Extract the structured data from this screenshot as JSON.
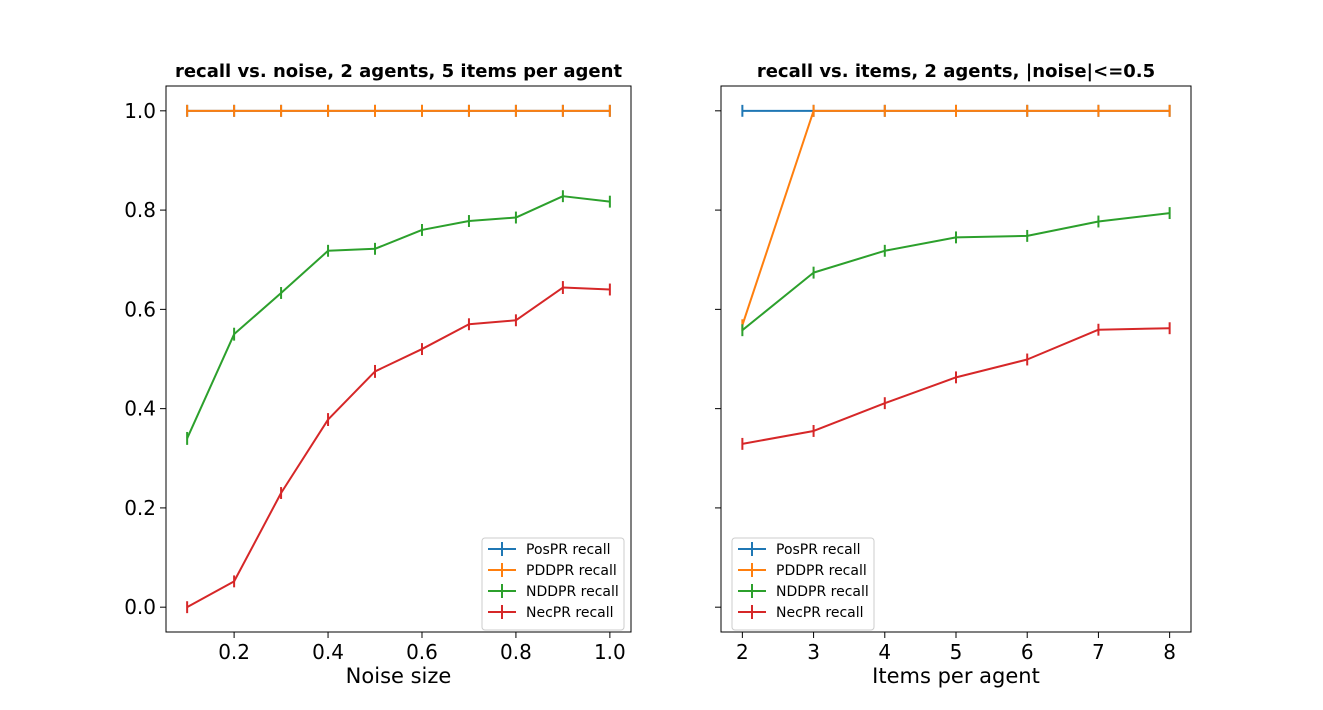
{
  "chart_data": [
    {
      "type": "line",
      "title": "recall vs. noise, 2 agents, 5 items per agent",
      "xlabel": "Noise size",
      "ylabel": "",
      "xlim": [
        0.055,
        1.045
      ],
      "ylim": [
        -0.05,
        1.05
      ],
      "xticks": [
        0.2,
        0.4,
        0.6,
        0.8,
        1.0
      ],
      "xtick_labels": [
        "0.2",
        "0.4",
        "0.6",
        "0.8",
        "1.0"
      ],
      "yticks": [
        0.0,
        0.2,
        0.4,
        0.6,
        0.8,
        1.0
      ],
      "ytick_labels": [
        "0.0",
        "0.2",
        "0.4",
        "0.6",
        "0.8",
        "1.0"
      ],
      "grid": false,
      "legend": "lower-right",
      "x": [
        0.1,
        0.2,
        0.3,
        0.4,
        0.5,
        0.6,
        0.7,
        0.8,
        0.9,
        1.0
      ],
      "series": [
        {
          "name": "PosPR recall",
          "color": "#1f77b4",
          "values": [
            1.0,
            1.0,
            1.0,
            1.0,
            1.0,
            1.0,
            1.0,
            1.0,
            1.0,
            1.0
          ],
          "err": [
            0,
            0,
            0,
            0,
            0,
            0,
            0,
            0,
            0,
            0
          ]
        },
        {
          "name": "PDDPR recall",
          "color": "#ff7f0e",
          "values": [
            1.0,
            1.0,
            1.0,
            1.0,
            1.0,
            1.0,
            1.0,
            1.0,
            1.0,
            1.0
          ],
          "err": [
            0,
            0,
            0,
            0,
            0,
            0,
            0,
            0,
            0,
            0
          ]
        },
        {
          "name": "NDDPR recall",
          "color": "#2ca02c",
          "values": [
            0.34,
            0.55,
            0.633,
            0.718,
            0.722,
            0.76,
            0.778,
            0.785,
            0.828,
            0.817
          ],
          "err": [
            0.013,
            0.013,
            0.012,
            0.01,
            0.01,
            0.01,
            0.01,
            0.01,
            0.01,
            0.01
          ]
        },
        {
          "name": "NecPR recall",
          "color": "#d62728",
          "values": [
            0.0,
            0.052,
            0.23,
            0.378,
            0.475,
            0.52,
            0.57,
            0.578,
            0.644,
            0.64
          ],
          "err": [
            0.003,
            0.006,
            0.012,
            0.013,
            0.013,
            0.012,
            0.012,
            0.012,
            0.013,
            0.012
          ]
        }
      ]
    },
    {
      "type": "line",
      "title": "recall vs. items, 2 agents, |noise|<=0.5",
      "xlabel": "Items per agent",
      "ylabel": "",
      "xlim": [
        1.7,
        8.3
      ],
      "ylim": [
        -0.05,
        1.05
      ],
      "xticks": [
        2,
        3,
        4,
        5,
        6,
        7,
        8
      ],
      "xtick_labels": [
        "2",
        "3",
        "4",
        "5",
        "6",
        "7",
        "8"
      ],
      "yticks": [
        0.0,
        0.2,
        0.4,
        0.6,
        0.8,
        1.0
      ],
      "ytick_labels": [],
      "grid": false,
      "legend": "lower-left",
      "x": [
        2,
        3,
        4,
        5,
        6,
        7,
        8
      ],
      "series": [
        {
          "name": "PosPR recall",
          "color": "#1f77b4",
          "values": [
            1.0,
            1.0,
            1.0,
            1.0,
            1.0,
            1.0,
            1.0
          ],
          "err": [
            0,
            0,
            0,
            0,
            0,
            0,
            0
          ]
        },
        {
          "name": "PDDPR recall",
          "color": "#ff7f0e",
          "values": [
            0.568,
            1.0,
            1.0,
            1.0,
            1.0,
            1.0,
            1.0
          ],
          "err": [
            0.01,
            0,
            0,
            0,
            0,
            0,
            0
          ]
        },
        {
          "name": "NDDPR recall",
          "color": "#2ca02c",
          "values": [
            0.558,
            0.674,
            0.718,
            0.745,
            0.748,
            0.777,
            0.794
          ],
          "err": [
            0.012,
            0.011,
            0.01,
            0.01,
            0.009,
            0.01,
            0.01
          ]
        },
        {
          "name": "NecPR recall",
          "color": "#d62728",
          "values": [
            0.329,
            0.355,
            0.411,
            0.463,
            0.499,
            0.559,
            0.562
          ],
          "err": [
            0.012,
            0.012,
            0.012,
            0.012,
            0.012,
            0.012,
            0.012
          ]
        }
      ]
    }
  ]
}
